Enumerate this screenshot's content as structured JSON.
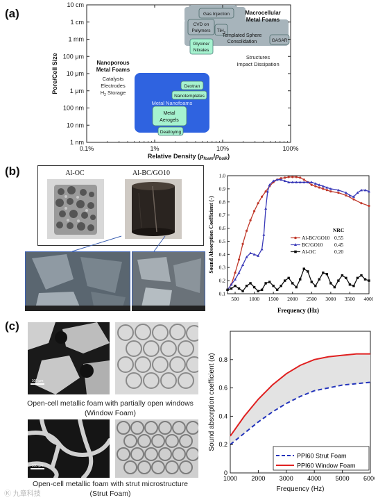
{
  "panel_labels": {
    "a": "(a)",
    "b": "(b)",
    "c": "(c)"
  },
  "panel_a": {
    "xlabel": "Relative Density (ρfoam/ρbulk)",
    "xlabel_parts": {
      "main": "Relative Density (",
      "rho1": "ρ",
      "sub1": "foam",
      "slash": "/",
      "rho2": "ρ",
      "sub2": "bulk",
      "close": ")"
    },
    "ylabel": "Pore/Cell Size",
    "x_ticks": [
      "0.1%",
      "1%",
      "10%",
      "100%"
    ],
    "y_ticks": [
      "10 cm",
      "1 cm",
      "1 mm",
      "100 μm",
      "10 μm",
      "1 μm",
      "100 nm",
      "10 nm",
      "1 nm"
    ],
    "macro_title": [
      "Macrocellular",
      "Metal Foams"
    ],
    "macro_apps": [
      "Structures",
      "Impact Dissipation"
    ],
    "nano_title": [
      "Nanoporous",
      "Metal Foams"
    ],
    "nano_apps": [
      "Catalysts",
      "Electrodes",
      "H2 Storage"
    ],
    "nano_apps_h2": {
      "h": "H",
      "sub": "2",
      "rest": " Storage"
    },
    "region_labels": {
      "gas_injection": "Gas Injection",
      "cvd": [
        "CVD on",
        "Polymers"
      ],
      "tih2": "TiH2",
      "tih2_parts": {
        "main": "TiH",
        "sub": "2"
      },
      "templated": [
        "Templated Sphere",
        "Consolidation"
      ],
      "gasar": "GASAR",
      "glycine": [
        "Glycine/",
        "Nitrates"
      ],
      "dextran": "Dextran",
      "nanotemplates": "Nanotemplates",
      "metal_nanofoams": "Metal Nanofoams",
      "metal_aerogels": [
        "Metal",
        "Aerogels"
      ],
      "dealloying": "Dealloying"
    },
    "colors": {
      "macro": "#a7b4bb",
      "nano": "#2f63e0",
      "green": "#a6f2cf",
      "outline": "#4a7f7a"
    }
  },
  "panel_b": {
    "photo_labels": [
      "Al-OC",
      "Al-BC/GO10"
    ],
    "chart_data": {
      "type": "line",
      "xlabel": "Frequency (Hz)",
      "ylabel": "Sound Absorption Coefficient (-)",
      "xlim": [
        300,
        4000
      ],
      "ylim": [
        0.1,
        1.0
      ],
      "x_ticks": [
        500,
        1000,
        1500,
        2000,
        2500,
        3000,
        3500,
        4000
      ],
      "y_ticks": [
        "0.1",
        "0.2",
        "0.3",
        "0.4",
        "0.5",
        "0.6",
        "0.7",
        "0.8",
        "0.9",
        "1.0"
      ],
      "legend_title": "NRC",
      "legend_position": "middle-left",
      "series": [
        {
          "name": "Al-BC/GO10",
          "nrc": "0.55",
          "color": "#c0392b",
          "marker": "circle",
          "x": [
            300,
            400,
            500,
            600,
            700,
            800,
            900,
            1000,
            1100,
            1200,
            1300,
            1400,
            1500,
            1600,
            1700,
            1800,
            1900,
            2000,
            2100,
            2200,
            2300,
            2400,
            2500,
            2600,
            2700,
            2800,
            2900,
            3000,
            3200,
            3400,
            3600,
            3800,
            4000
          ],
          "y": [
            0.13,
            0.17,
            0.26,
            0.36,
            0.48,
            0.58,
            0.66,
            0.73,
            0.79,
            0.84,
            0.88,
            0.92,
            0.95,
            0.97,
            0.98,
            0.985,
            0.99,
            0.99,
            0.99,
            0.985,
            0.97,
            0.95,
            0.93,
            0.92,
            0.91,
            0.9,
            0.89,
            0.88,
            0.87,
            0.85,
            0.82,
            0.79,
            0.77
          ]
        },
        {
          "name": "BC/GO10",
          "nrc": "0.45",
          "color": "#3a3ab8",
          "marker": "triangle",
          "x": [
            300,
            400,
            500,
            600,
            700,
            800,
            900,
            1000,
            1100,
            1200,
            1250,
            1300,
            1350,
            1400,
            1500,
            1600,
            1700,
            1800,
            1900,
            2000,
            2100,
            2200,
            2300,
            2400,
            2500,
            2600,
            2700,
            2800,
            2900,
            3000,
            3200,
            3400,
            3500,
            3600,
            3700,
            3800,
            3900,
            4000
          ],
          "y": [
            0.13,
            0.17,
            0.21,
            0.26,
            0.32,
            0.38,
            0.41,
            0.4,
            0.39,
            0.44,
            0.55,
            0.75,
            0.88,
            0.93,
            0.96,
            0.97,
            0.97,
            0.96,
            0.95,
            0.95,
            0.95,
            0.95,
            0.95,
            0.95,
            0.95,
            0.94,
            0.93,
            0.92,
            0.91,
            0.9,
            0.89,
            0.87,
            0.85,
            0.84,
            0.87,
            0.89,
            0.89,
            0.88
          ]
        },
        {
          "name": "Al-OC",
          "nrc": "0.20",
          "color": "#111111",
          "marker": "square",
          "x": [
            300,
            400,
            500,
            600,
            700,
            800,
            900,
            1000,
            1100,
            1200,
            1300,
            1400,
            1500,
            1600,
            1700,
            1800,
            1900,
            2000,
            2100,
            2200,
            2300,
            2400,
            2500,
            2600,
            2700,
            2800,
            2900,
            3000,
            3100,
            3200,
            3300,
            3400,
            3500,
            3600,
            3700,
            3800,
            3900,
            4000
          ],
          "y": [
            0.13,
            0.14,
            0.16,
            0.14,
            0.12,
            0.16,
            0.18,
            0.15,
            0.12,
            0.13,
            0.18,
            0.19,
            0.16,
            0.13,
            0.16,
            0.2,
            0.22,
            0.18,
            0.15,
            0.21,
            0.29,
            0.27,
            0.19,
            0.16,
            0.21,
            0.26,
            0.25,
            0.18,
            0.15,
            0.2,
            0.24,
            0.22,
            0.17,
            0.16,
            0.22,
            0.24,
            0.21,
            0.2
          ]
        }
      ]
    }
  },
  "panel_c": {
    "captions": [
      [
        "Open-cell metallic foam with partially open windows",
        "(Window Foam)"
      ],
      [
        "Open-cell metallic foam with strut microstructure",
        "(Strut Foam)"
      ]
    ],
    "scale_bar": "100 μm",
    "chart_data": {
      "type": "area",
      "xlabel": "Frequency (Hz)",
      "ylabel": "Sound absorption coefficient (α)",
      "xlim": [
        1000,
        6000
      ],
      "ylim": [
        0,
        1.0
      ],
      "x_ticks": [
        1000,
        2000,
        3000,
        4000,
        5000,
        6000
      ],
      "y_ticks": [
        "0",
        "0.2",
        "0.4",
        "0.6",
        "0.8"
      ],
      "legend_position": "bottom-right",
      "series": [
        {
          "name": "PPI60 Strut Foam",
          "style": "dashed",
          "color": "#2233bb",
          "x": [
            1000,
            1500,
            2000,
            2500,
            3000,
            3500,
            4000,
            4500,
            5000,
            5500,
            6000
          ],
          "y": [
            0.2,
            0.28,
            0.36,
            0.43,
            0.49,
            0.54,
            0.58,
            0.6,
            0.62,
            0.63,
            0.64
          ]
        },
        {
          "name": "PPI60 Window Foam",
          "style": "solid",
          "color": "#e02020",
          "x": [
            1000,
            1500,
            2000,
            2500,
            3000,
            3500,
            4000,
            4500,
            5000,
            5500,
            6000
          ],
          "y": [
            0.26,
            0.4,
            0.52,
            0.62,
            0.7,
            0.76,
            0.8,
            0.82,
            0.83,
            0.84,
            0.84
          ]
        }
      ],
      "fill_between": "#e3e3e3"
    }
  },
  "watermark": "Ⓚ 九章科技"
}
